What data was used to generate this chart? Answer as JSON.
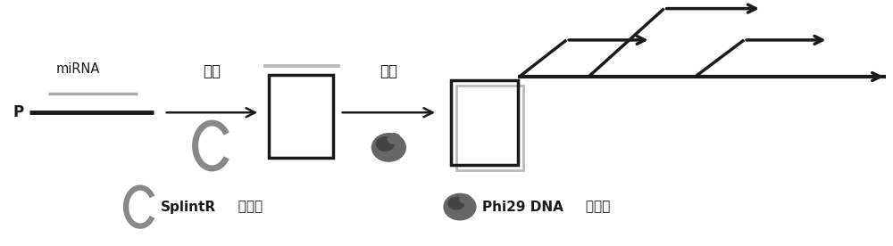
{
  "bg_color": "#ffffff",
  "fig_width": 10.0,
  "fig_height": 2.76,
  "dpi": 100,
  "p_label": "P",
  "mirna_label": "miRNA",
  "linjie_label": "连接",
  "kuozeng_label": "扩增",
  "legend_splint_bold": "SplintR",
  "legend_splint_rest": "  连接酶",
  "legend_phi29_bold": "Phi29 DNA",
  "legend_phi29_rest": " 聚合酶",
  "gray_line_color": "#aaaaaa",
  "black_color": "#1a1a1a",
  "crescent_color": "#888888",
  "phi29_color": "#666666",
  "phi29_inner_color": "#444444",
  "arrow_color": "#333333"
}
